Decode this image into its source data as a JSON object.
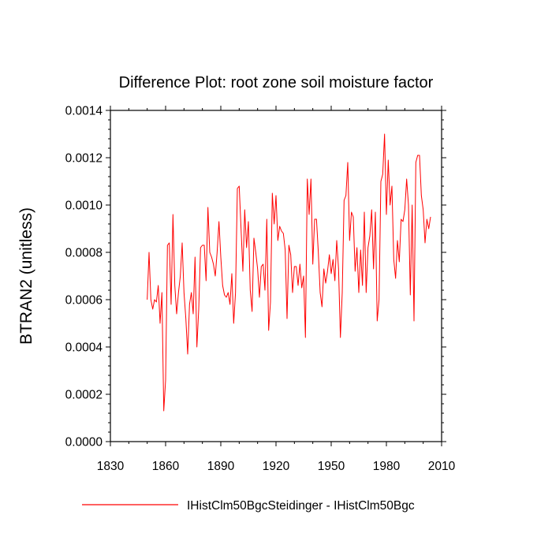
{
  "chart_data": {
    "type": "line",
    "title": "Difference Plot: root zone soil moisture factor",
    "xlabel": "",
    "ylabel": "BTRAN2  (unitless)",
    "xlim": [
      1830,
      2010
    ],
    "ylim": [
      0,
      0.0014
    ],
    "x_ticks": [
      1830,
      1860,
      1890,
      1920,
      1950,
      1980,
      2010
    ],
    "x_tick_labels": [
      "1830",
      "1860",
      "1890",
      "1920",
      "1950",
      "1980",
      "2010"
    ],
    "y_ticks": [
      0,
      0.0002,
      0.0004,
      0.0006,
      0.0008,
      0.001,
      0.0012,
      0.0014
    ],
    "y_tick_labels": [
      "0.0000",
      "0.0002",
      "0.0004",
      "0.0006",
      "0.0008",
      "0.0010",
      "0.0012",
      "0.0014"
    ],
    "legend_position": "bottom",
    "series": [
      {
        "name": "IHistClm50BgcSteidinger - IHistClm50Bgc",
        "color": "#ff0000",
        "x_start": 1850,
        "x_step": 1,
        "values": [
          0.0006,
          0.0008,
          0.0006,
          0.00056,
          0.0006,
          0.00059,
          0.00066,
          0.0005,
          0.00063,
          0.00013,
          0.00026,
          0.00083,
          0.00084,
          0.00058,
          0.00096,
          0.00066,
          0.00054,
          0.00063,
          0.0007,
          0.00084,
          0.00063,
          0.00052,
          0.00037,
          0.00058,
          0.00063,
          0.00054,
          0.00078,
          0.0004,
          0.00056,
          0.00082,
          0.00083,
          0.00083,
          0.00068,
          0.00099,
          0.0008,
          0.00078,
          0.00075,
          0.0007,
          0.0008,
          0.00093,
          0.00078,
          0.00066,
          0.00062,
          0.00061,
          0.00063,
          0.00058,
          0.00071,
          0.0005,
          0.00063,
          0.00107,
          0.00108,
          0.0009,
          0.00072,
          0.00098,
          0.00082,
          0.00093,
          0.00064,
          0.00055,
          0.00086,
          0.0008,
          0.00073,
          0.00061,
          0.00074,
          0.00075,
          0.00064,
          0.00094,
          0.00047,
          0.00059,
          0.00105,
          0.00092,
          0.00104,
          0.00085,
          0.00091,
          0.00089,
          0.00088,
          0.00081,
          0.00052,
          0.00083,
          0.00079,
          0.00063,
          0.00074,
          0.00074,
          0.00066,
          0.00075,
          0.00065,
          0.0007,
          0.00044,
          0.00111,
          0.00096,
          0.00111,
          0.00075,
          0.00094,
          0.00094,
          0.0008,
          0.00063,
          0.00057,
          0.00073,
          0.00067,
          0.00072,
          0.00079,
          0.00071,
          0.00077,
          0.00068,
          0.00085,
          0.00073,
          0.00044,
          0.00063,
          0.00102,
          0.00104,
          0.00118,
          0.00085,
          0.00097,
          0.00095,
          0.00072,
          0.00082,
          0.00063,
          0.00081,
          0.00066,
          0.00097,
          0.00063,
          0.00082,
          0.00087,
          0.00098,
          0.00073,
          0.00097,
          0.00051,
          0.0006,
          0.0011,
          0.00113,
          0.0013,
          0.00096,
          0.00119,
          0.001,
          0.00108,
          0.00077,
          0.00069,
          0.00085,
          0.00076,
          0.00094,
          0.00093,
          0.00098,
          0.00111,
          0.001,
          0.00062,
          0.001,
          0.00051,
          0.00118,
          0.00121,
          0.00121,
          0.00104,
          0.00098,
          0.00084,
          0.00094,
          0.0009,
          0.00095
        ]
      }
    ]
  }
}
